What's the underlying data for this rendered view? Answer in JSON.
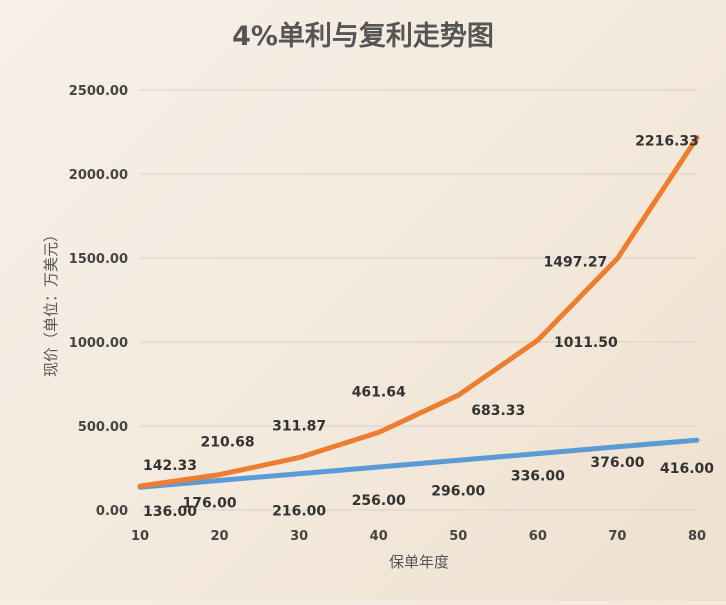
{
  "chart_data": {
    "type": "line",
    "title": "4%单利与复利走势图",
    "xlabel": "保单年度",
    "ylabel": "现价（单位：万美元）",
    "x": [
      10,
      20,
      30,
      40,
      50,
      60,
      70,
      80
    ],
    "ylim": [
      0,
      2500
    ],
    "yticks": [
      "0.00",
      "500.00",
      "1000.00",
      "1500.00",
      "2000.00",
      "2500.00"
    ],
    "xticks": [
      "10",
      "20",
      "30",
      "40",
      "50",
      "60",
      "70",
      "80"
    ],
    "grid": true,
    "legend": "none",
    "series": [
      {
        "key": "simple",
        "color": "#5b9bd5",
        "values": [
          136.0,
          176.0,
          216.0,
          256.0,
          296.0,
          336.0,
          376.0,
          416.0
        ],
        "labels": [
          "136.00",
          "176.00",
          "216.00",
          "256.00",
          "296.00",
          "336.00",
          "376.00",
          "416.00"
        ]
      },
      {
        "key": "compound",
        "color": "#ed7d31",
        "values": [
          142.33,
          210.68,
          311.87,
          461.64,
          683.33,
          1011.5,
          1497.27,
          2216.33
        ],
        "labels": [
          "142.33",
          "210.68",
          "311.87",
          "461.64",
          "683.33",
          "1011.50",
          "1497.27",
          "2216.33"
        ]
      }
    ]
  }
}
